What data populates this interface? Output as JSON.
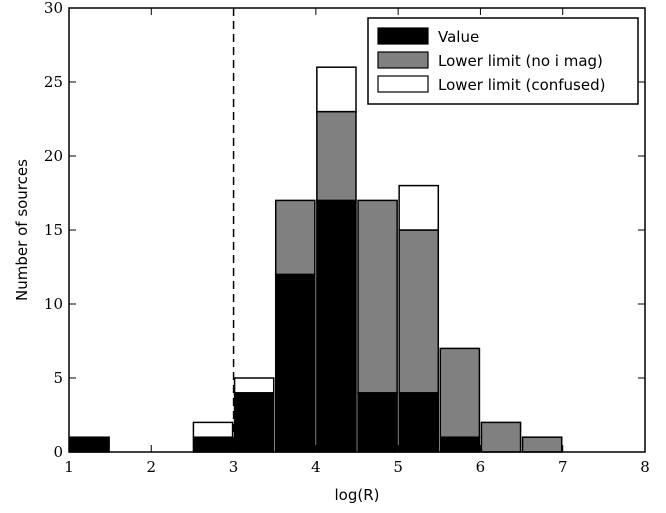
{
  "chart_data": {
    "type": "bar",
    "stacked": true,
    "x": [
      1.25,
      1.75,
      2.25,
      2.75,
      3.25,
      3.75,
      4.25,
      4.75,
      5.25,
      5.75,
      6.25,
      6.75,
      7.25,
      7.75
    ],
    "bin_width": 0.5,
    "series": [
      {
        "name": "Value",
        "color": "#000000",
        "values": [
          1,
          0,
          0,
          1,
          4,
          12,
          17,
          4,
          4,
          1,
          0,
          0,
          0,
          0
        ]
      },
      {
        "name": "Lower limit (no i mag)",
        "color": "#808080",
        "values": [
          0,
          0,
          0,
          0,
          0,
          5,
          6,
          13,
          11,
          6,
          2,
          1,
          0,
          0
        ]
      },
      {
        "name": "Lower limit (confused)",
        "color": "#ffffff",
        "values": [
          0,
          0,
          0,
          1,
          1,
          0,
          3,
          0,
          3,
          0,
          0,
          0,
          0,
          0
        ]
      }
    ],
    "xlabel": "log(R)",
    "ylabel": "Number of sources",
    "xlim": [
      1,
      8
    ],
    "ylim": [
      0,
      30
    ],
    "xticks": [
      1,
      2,
      3,
      4,
      5,
      6,
      7,
      8
    ],
    "yticks": [
      0,
      5,
      10,
      15,
      20,
      25,
      30
    ],
    "vline": 3,
    "grid": false,
    "legend_position": "top-right"
  }
}
